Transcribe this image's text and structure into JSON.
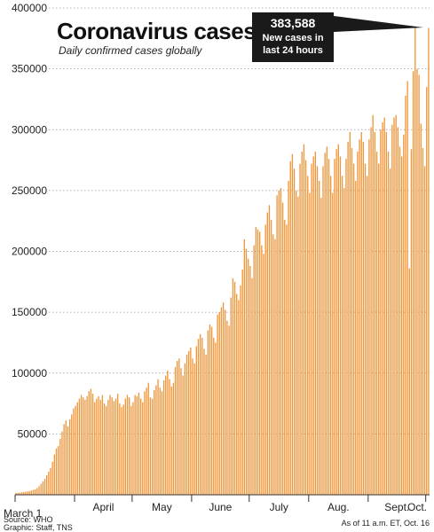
{
  "chart_data": {
    "type": "bar",
    "title": "Coronavirus cases",
    "subtitle": "Daily confirmed cases globally",
    "ylim": [
      0,
      400000
    ],
    "yticks": [
      "400000",
      "350000",
      "300000",
      "250000",
      "200000",
      "150000",
      "100000",
      "50000"
    ],
    "yticks_values": [
      400000,
      350000,
      300000,
      250000,
      200000,
      150000,
      100000,
      50000
    ],
    "x_first_label": "March 1",
    "month_labels": [
      {
        "label": "April",
        "day_index": 31
      },
      {
        "label": "May",
        "day_index": 61
      },
      {
        "label": "June",
        "day_index": 92
      },
      {
        "label": "July",
        "day_index": 122
      },
      {
        "label": "Aug.",
        "day_index": 153
      },
      {
        "label": "Sept.",
        "day_index": 184
      },
      {
        "label": "Oct.",
        "day_index": 214
      }
    ],
    "grid": true,
    "bar_color": "#f0963a",
    "callout": {
      "value": "383,588",
      "line1": "New cases in",
      "line2": "last 24 hours"
    },
    "source": "Source: WHO",
    "graphic": "Graphic: Staff, TNS",
    "as_of": "As of 11 a.m. ET, Oct. 16",
    "values": [
      1500,
      1600,
      1800,
      2000,
      2200,
      2500,
      2800,
      3000,
      3500,
      4000,
      4500,
      5500,
      7000,
      9000,
      11000,
      13000,
      16000,
      19000,
      22000,
      27000,
      33000,
      38000,
      40000,
      46000,
      52000,
      58000,
      61000,
      56000,
      62000,
      66000,
      71000,
      73000,
      76000,
      79000,
      82000,
      80000,
      78000,
      81000,
      85000,
      87000,
      83000,
      76000,
      79000,
      81000,
      78000,
      82000,
      75000,
      73000,
      78000,
      82000,
      80000,
      77000,
      79000,
      83000,
      75000,
      72000,
      74000,
      79000,
      82000,
      80000,
      73000,
      76000,
      82000,
      81000,
      84000,
      79000,
      76000,
      85000,
      88000,
      92000,
      80000,
      79000,
      86000,
      90000,
      95000,
      88000,
      85000,
      94000,
      98000,
      102000,
      95000,
      89000,
      92000,
      105000,
      110000,
      112000,
      104000,
      98000,
      108000,
      115000,
      118000,
      121000,
      112000,
      108000,
      122000,
      128000,
      132000,
      129000,
      120000,
      115000,
      135000,
      140000,
      138000,
      129000,
      125000,
      148000,
      150000,
      154000,
      158000,
      152000,
      143000,
      139000,
      162000,
      178000,
      175000,
      165000,
      160000,
      172000,
      185000,
      210000,
      202000,
      194000,
      188000,
      178000,
      205000,
      220000,
      218000,
      216000,
      205000,
      198000,
      222000,
      232000,
      238000,
      226000,
      214000,
      210000,
      246000,
      250000,
      252000,
      240000,
      226000,
      222000,
      258000,
      274000,
      280000,
      268000,
      250000,
      245000,
      272000,
      282000,
      288000,
      275000,
      262000,
      248000,
      272000,
      278000,
      282000,
      270000,
      258000,
      244000,
      270000,
      281000,
      286000,
      276000,
      262000,
      248000,
      276000,
      284000,
      288000,
      278000,
      262000,
      252000,
      276000,
      290000,
      298000,
      285000,
      272000,
      258000,
      282000,
      292000,
      298000,
      290000,
      272000,
      262000,
      292000,
      302000,
      312000,
      298000,
      282000,
      272000,
      300000,
      306000,
      310000,
      298000,
      282000,
      268000,
      304000,
      310000,
      312000,
      302000,
      286000,
      278000,
      296000,
      328000,
      340000,
      186000,
      284000,
      348000,
      383588,
      350000,
      345000,
      305000,
      285000,
      270000,
      335000,
      383588
    ]
  }
}
